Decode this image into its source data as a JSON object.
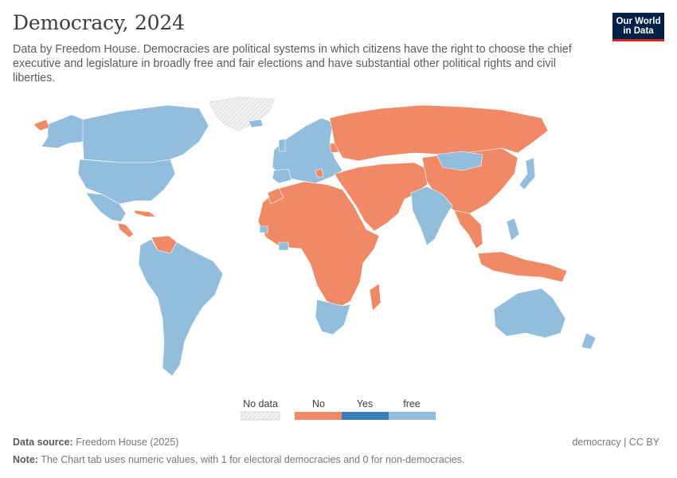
{
  "header": {
    "title": "Democracy, 2024",
    "subtitle": "Data by Freedom House. Democracies are political systems in which citizens have the right to choose the chief executive and legislature in broadly free and fair elections and have substantial other political rights and civil liberties.",
    "logo_line1": "Our World",
    "logo_line2": "in Data"
  },
  "legend": {
    "no_data_label": "No data",
    "categories": [
      {
        "label": "No",
        "color": "#f08a66"
      },
      {
        "label": "Yes",
        "color": "#3b7db6"
      },
      {
        "label": "free",
        "color": "#92bddc"
      }
    ],
    "no_data_color": "#e8e8e8"
  },
  "map": {
    "colors": {
      "no": "#f08a66",
      "free": "#92bddc",
      "no_data": "#e8e8e8",
      "border": "#ffffff"
    }
  },
  "footer": {
    "source_label": "Data source:",
    "source_value": "Freedom House (2025)",
    "note_label": "Note:",
    "note_value": "The Chart tab uses numeric values, with 1 for electoral democracies and 0 for non-democracies.",
    "license": "democracy | CC BY"
  }
}
